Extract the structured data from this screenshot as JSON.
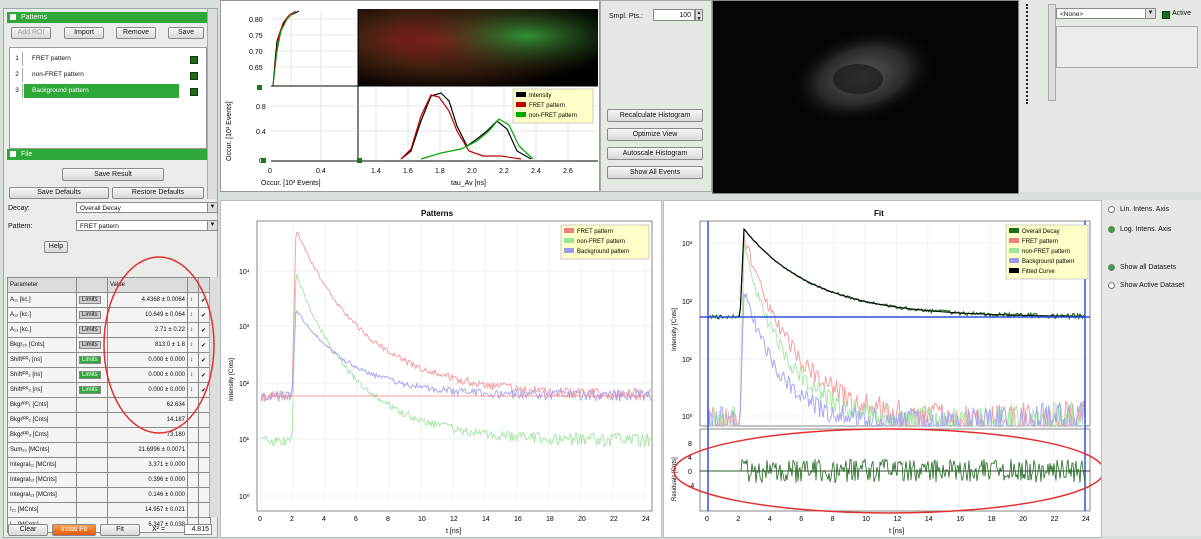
{
  "left_panel": {
    "patterns_header": "Patterns",
    "buttons": {
      "add_roi": "Add ROI",
      "import": "Import",
      "remove": "Remove",
      "save": "Save"
    },
    "patterns": [
      {
        "index": "1",
        "name": "FRET pattern",
        "checked": true
      },
      {
        "index": "2",
        "name": "non-FRET pattern",
        "checked": true
      },
      {
        "index": "3",
        "name": "Background pattern",
        "checked": true
      }
    ],
    "file_header": "File",
    "save_result": "Save Result",
    "save_defaults": "Save Defaults",
    "restore_defaults": "Restore Defaults",
    "decay_label": "Decay:",
    "decay_value": "Overall Decay",
    "pattern_label": "Pattern:",
    "pattern_value": "FRET pattern",
    "help": "Help",
    "table_headers": {
      "parameter": "Parameter",
      "value": "Value"
    },
    "limits_label": "Limits",
    "params": [
      {
        "name": "A₁₁ [kc.]",
        "value": "4.4368 ± 0.0064",
        "limits": true,
        "green": false
      },
      {
        "name": "A₁₂ [kc.]",
        "value": "10.649 ± 0.064",
        "limits": true,
        "green": false
      },
      {
        "name": "A₁₃ [kc.]",
        "value": "2.71 ± 0.22",
        "limits": true,
        "green": false
      },
      {
        "name": "Bkgr₂₀ [Cnts]",
        "value": "813.0 ± 1.8",
        "limits": true,
        "green": false
      },
      {
        "name": "Shiftᴵᴿᴿ₁ [ns]",
        "value": "0.000 ± 0.000",
        "limits": true,
        "green": true
      },
      {
        "name": "Shiftᴵᴿᴿ₂ [ns]",
        "value": "0.000 ± 0.000",
        "limits": true,
        "green": true
      },
      {
        "name": "Shiftᴵᴿᴿ₃ [ns]",
        "value": "0.000 ± 0.000",
        "limits": true,
        "green": true
      },
      {
        "name": "Bkgrᴵᴿᴿ₁ [Cnts]",
        "value": "62.634",
        "limits": false,
        "green": false
      },
      {
        "name": "Bkgrᴵᴿᴿ₂ [Cnts]",
        "value": "14.187",
        "limits": false,
        "green": false
      },
      {
        "name": "Bkgrᴵᴿᴿ₃ [Cnts]",
        "value": "73.180",
        "limits": false,
        "green": false
      },
      {
        "name": "Sum₁₀ [MCnts]",
        "value": "21.6996 ± 0.0071",
        "limits": false,
        "green": false
      },
      {
        "name": "Integral₁₁ [MCnts]",
        "value": "3.371 ± 0.000",
        "limits": false,
        "green": false
      },
      {
        "name": "Integral₁₂ [MCnts]",
        "value": "0.396 ± 0.000",
        "limits": false,
        "green": false
      },
      {
        "name": "Integral₁₃ [MCnts]",
        "value": "0.146 ± 0.000",
        "limits": false,
        "green": false
      },
      {
        "name": "I₂₁ [MCnts]",
        "value": "14.957 ± 0.021",
        "limits": false,
        "green": false
      },
      {
        "name": "I₂₂ [MCnts]",
        "value": "6.347 ± 0.038",
        "limits": false,
        "green": false
      }
    ],
    "bottom": {
      "clear": "Clear",
      "initial_fit": "Initial Fit",
      "fit": "Fit",
      "chi_label": "X² =",
      "chi_value": "4.815"
    }
  },
  "top_plots": {
    "y_ticks_top": [
      "0.80",
      "0.75",
      "0.70",
      "0.65"
    ],
    "y_axis_left": "Occur. [10³ Events]",
    "y_ticks_bottom": [
      "0.8",
      "0.4",
      "0"
    ],
    "x_ticks_left": [
      "0",
      "0.4"
    ],
    "x_label_left": "Occur. [10³ Events]",
    "x_ticks_main": [
      "1.4",
      "1.6",
      "1.8",
      "2.0",
      "2.2",
      "2.4",
      "2.6"
    ],
    "x_label_main": "tau_Av [ns]",
    "legend": [
      "Intensity",
      "FRET pattern",
      "non-FRET pattern"
    ]
  },
  "histogram_controls": {
    "smpl_label": "Smpl. Pts.:",
    "smpl_value": "100",
    "buttons": [
      "Recalculate Histogram",
      "Optimize View",
      "Autoscale Histogram",
      "Show All Events"
    ]
  },
  "right_top": {
    "dropdown": "<None>",
    "active_label": "Active"
  },
  "patterns_plot": {
    "title": "Patterns",
    "ylabel": "Intensity [Cnts]",
    "xlabel": "t [ns]",
    "y_ticks": [
      "10⁴",
      "10³",
      "10²",
      "10¹",
      "10⁰"
    ],
    "x_ticks": [
      "0",
      "2",
      "4",
      "6",
      "8",
      "10",
      "12",
      "14",
      "16",
      "18",
      "20",
      "22",
      "24"
    ],
    "legend": [
      "FRET pattern",
      "non-FRET pattern",
      "Background pattern"
    ],
    "colors": [
      "#f08080",
      "#98e698",
      "#9999ee"
    ]
  },
  "fit_plot": {
    "title": "Fit",
    "ylabel": "Intensity [Cnts]",
    "xlabel": "t [ns]",
    "resid_label": "Residuals [Cnts]",
    "y_ticks": [
      "10³",
      "10²",
      "10¹",
      "10⁰"
    ],
    "resid_ticks": [
      "8",
      "4",
      "0",
      "-4"
    ],
    "x_ticks": [
      "0",
      "2",
      "4",
      "6",
      "8",
      "10",
      "12",
      "14",
      "16",
      "18",
      "20",
      "22",
      "24"
    ],
    "legend": [
      "Overall Decay",
      "FRET pattern",
      "non-FRET pattern",
      "Background pattern",
      "Fitted Curve"
    ],
    "colors": [
      "#1e6b1e",
      "#f08080",
      "#98e698",
      "#9999ee",
      "#000000"
    ]
  },
  "right_options": {
    "lin": "Lin. Intens. Axis",
    "log": "Log. Intens. Axis",
    "show_all": "Show all Datasets",
    "show_active": "Show Active Dataset"
  }
}
